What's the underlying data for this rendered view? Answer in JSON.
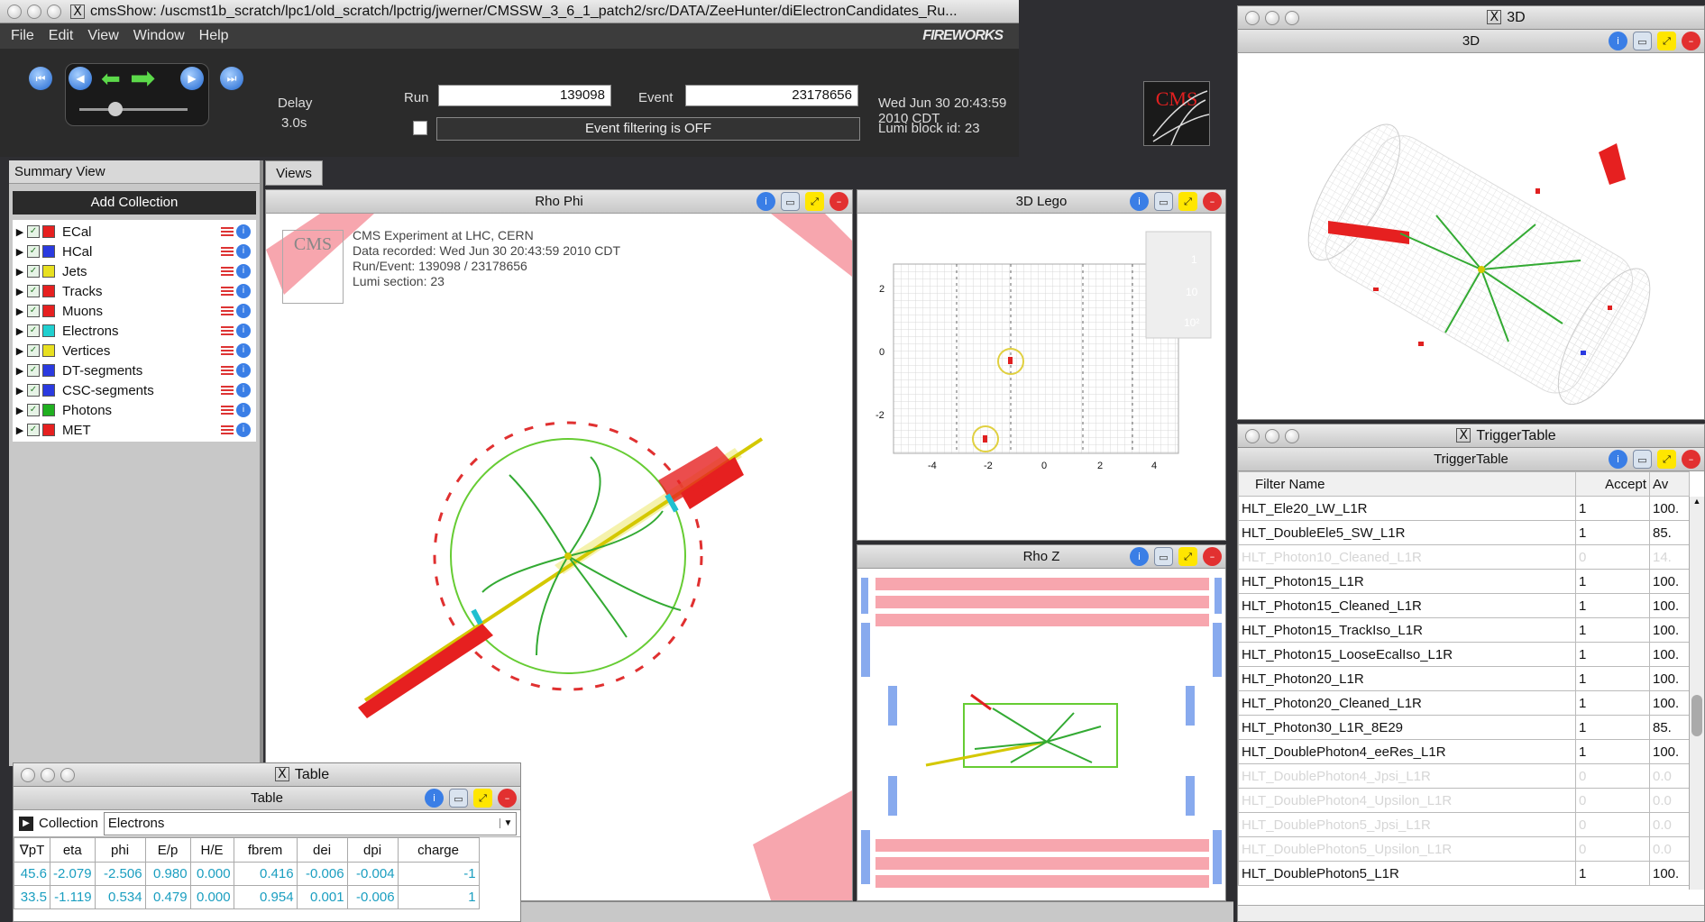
{
  "main_window": {
    "title": "cmsShow: /uscmst1b_scratch/lpc1/old_scratch/lpctrig/jwerner/CMSSW_3_6_1_patch2/src/DATA/ZeeHunter/diElectronCandidates_Ru...",
    "menu": [
      "File",
      "Edit",
      "View",
      "Window",
      "Help"
    ],
    "brand": "FIREWORKS",
    "delay_label": "Delay",
    "delay_value": "3.0s",
    "run_label": "Run",
    "run_value": "139098",
    "event_label": "Event",
    "event_value": "23178656",
    "filter_status": "Event filtering is OFF",
    "datetime": "Wed Jun 30 20:43:59 2010 CDT",
    "lumi": "Lumi block id: 23",
    "cms_logo": "CMS"
  },
  "summary": {
    "title": "Summary View",
    "add_button": "Add Collection",
    "collections": [
      {
        "name": "ECal",
        "color": "#e62020"
      },
      {
        "name": "HCal",
        "color": "#2a3ae0"
      },
      {
        "name": "Jets",
        "color": "#e8e020"
      },
      {
        "name": "Tracks",
        "color": "#e62020"
      },
      {
        "name": "Muons",
        "color": "#e62020"
      },
      {
        "name": "Electrons",
        "color": "#20d0d0"
      },
      {
        "name": "Vertices",
        "color": "#e8e020"
      },
      {
        "name": "DT-segments",
        "color": "#2a3ae0"
      },
      {
        "name": "CSC-segments",
        "color": "#2a3ae0"
      },
      {
        "name": "Photons",
        "color": "#20b020"
      },
      {
        "name": "MET",
        "color": "#e62020"
      }
    ]
  },
  "views": {
    "tab": "Views",
    "rho_phi": "Rho Phi",
    "lego": "3D Lego",
    "rho_z": "Rho Z",
    "info_lines": [
      "CMS Experiment at LHC, CERN",
      "Data recorded: Wed Jun 30 20:43:59 2010 CDT",
      "Run/Event: 139098 / 23178656",
      "Lumi section: 23"
    ],
    "lego_axis_y": [
      "2",
      "0",
      "-2"
    ],
    "lego_axis_x": [
      "-4",
      "-2",
      "0",
      "2",
      "4"
    ],
    "lego_legend": [
      "1",
      "10",
      "10²"
    ]
  },
  "window_3d": {
    "title": "3D",
    "header": "3D"
  },
  "trigger": {
    "title": "TriggerTable",
    "header": "TriggerTable",
    "columns": [
      "Filter Name",
      "Accept",
      "Av"
    ],
    "rows": [
      {
        "name": "HLT_Ele20_LW_L1R",
        "accept": "1",
        "av": "100.",
        "dim": false
      },
      {
        "name": "HLT_DoubleEle5_SW_L1R",
        "accept": "1",
        "av": "85.",
        "dim": false
      },
      {
        "name": "HLT_Photon10_Cleaned_L1R",
        "accept": "0",
        "av": "14.",
        "dim": true
      },
      {
        "name": "HLT_Photon15_L1R",
        "accept": "1",
        "av": "100.",
        "dim": false
      },
      {
        "name": "HLT_Photon15_Cleaned_L1R",
        "accept": "1",
        "av": "100.",
        "dim": false
      },
      {
        "name": "HLT_Photon15_TrackIso_L1R",
        "accept": "1",
        "av": "100.",
        "dim": false
      },
      {
        "name": "HLT_Photon15_LooseEcalIso_L1R",
        "accept": "1",
        "av": "100.",
        "dim": false
      },
      {
        "name": "HLT_Photon20_L1R",
        "accept": "1",
        "av": "100.",
        "dim": false
      },
      {
        "name": "HLT_Photon20_Cleaned_L1R",
        "accept": "1",
        "av": "100.",
        "dim": false
      },
      {
        "name": "HLT_Photon30_L1R_8E29",
        "accept": "1",
        "av": "85.",
        "dim": false
      },
      {
        "name": "HLT_DoublePhoton4_eeRes_L1R",
        "accept": "1",
        "av": "100.",
        "dim": false
      },
      {
        "name": "HLT_DoublePhoton4_Jpsi_L1R",
        "accept": "0",
        "av": "0.0",
        "dim": true
      },
      {
        "name": "HLT_DoublePhoton4_Upsilon_L1R",
        "accept": "0",
        "av": "0.0",
        "dim": true
      },
      {
        "name": "HLT_DoublePhoton5_Jpsi_L1R",
        "accept": "0",
        "av": "0.0",
        "dim": true
      },
      {
        "name": "HLT_DoublePhoton5_Upsilon_L1R",
        "accept": "0",
        "av": "0.0",
        "dim": true
      },
      {
        "name": "HLT_DoublePhoton5_L1R",
        "accept": "1",
        "av": "100.",
        "dim": false
      }
    ]
  },
  "table_window": {
    "title": "Table",
    "header": "Table",
    "collection_label": "Collection",
    "collection_value": "Electrons",
    "columns": [
      "∇pT",
      "eta",
      "phi",
      "E/p",
      "H/E",
      "fbrem",
      "dei",
      "dpi",
      "charge"
    ],
    "rows": [
      [
        "45.6",
        "-2.079",
        "-2.506",
        "0.980",
        "0.000",
        "0.416",
        "-0.006",
        "-0.004",
        "-1"
      ],
      [
        "33.5",
        "-1.119",
        "0.534",
        "0.479",
        "0.000",
        "0.954",
        "0.001",
        "-0.006",
        "1"
      ]
    ]
  }
}
